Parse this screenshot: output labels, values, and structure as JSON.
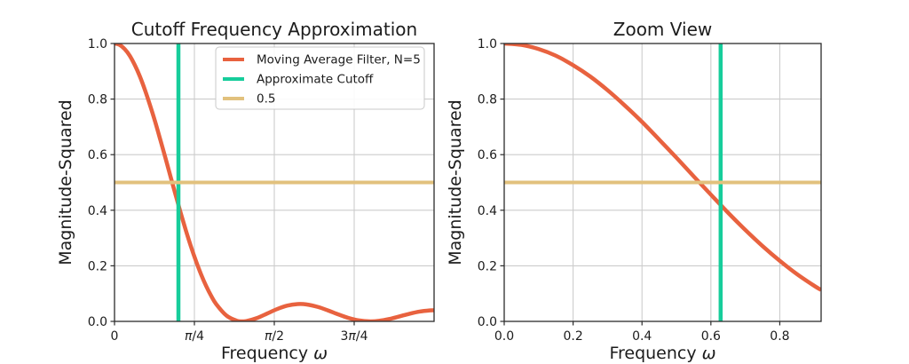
{
  "figure": {
    "background": "#ffffff",
    "text_color": "#1c1c1c",
    "grid_color": "#cccccc",
    "spine_color": "#2b2b2b"
  },
  "chart_data": [
    {
      "type": "line",
      "title": "Cutoff Frequency Approximation",
      "xlabel": "Frequency ω",
      "ylabel": "Magnitude-Squared",
      "xlim": [
        0,
        3.1416
      ],
      "ylim": [
        0,
        1.0
      ],
      "grid": true,
      "legend_position": "upper right",
      "xticks": {
        "values": [
          0,
          0.7854,
          1.5708,
          2.3562
        ],
        "labels": [
          "0",
          "π/4",
          "π/2",
          "3π/4"
        ]
      },
      "yticks": {
        "values": [
          0,
          0.2,
          0.4,
          0.6,
          0.8,
          1.0
        ],
        "labels": [
          "0.0",
          "0.2",
          "0.4",
          "0.6",
          "0.8",
          "1.0"
        ]
      },
      "series": [
        {
          "name": "Moving Average Filter, N=5",
          "color": "#e8623f",
          "x": [
            0,
            0.05,
            0.1,
            0.15,
            0.2,
            0.25,
            0.3,
            0.35,
            0.4,
            0.45,
            0.5,
            0.55,
            0.6,
            0.65,
            0.7,
            0.75,
            0.8,
            0.85,
            0.9,
            0.95,
            1.0,
            1.1,
            1.2,
            1.257,
            1.3,
            1.4,
            1.5,
            1.6,
            1.7,
            1.8,
            1.885,
            2.0,
            2.1,
            2.2,
            2.3,
            2.4,
            2.513,
            2.6,
            2.7,
            2.8,
            2.9,
            3.0,
            3.1,
            3.1416
          ],
          "y": [
            1,
            0.995,
            0.98,
            0.956,
            0.922,
            0.881,
            0.832,
            0.777,
            0.718,
            0.654,
            0.589,
            0.522,
            0.456,
            0.391,
            0.329,
            0.271,
            0.218,
            0.17,
            0.128,
            0.092,
            0.062,
            0.021,
            0.0025,
            0,
            0.0013,
            0.0119,
            0.0281,
            0.0445,
            0.0568,
            0.0623,
            0.0611,
            0.0519,
            0.0392,
            0.0251,
            0.0124,
            0.0036,
            0,
            0.002,
            0.0085,
            0.0178,
            0.0275,
            0.0353,
            0.0396,
            0.04
          ]
        }
      ],
      "vline": {
        "label": "Approximate Cutoff",
        "x": 0.6283,
        "color": "#16cd9b"
      },
      "hline": {
        "label": "0.5",
        "y": 0.5,
        "color": "#e2c17d"
      },
      "legend": {
        "entries": [
          "Moving Average Filter, N=5",
          "Approximate Cutoff",
          "0.5"
        ]
      }
    },
    {
      "type": "line",
      "title": "Zoom View",
      "xlabel": "Frequency ω",
      "ylabel": "Magnitude-Squared",
      "xlim": [
        0,
        0.92
      ],
      "ylim": [
        0,
        1.0
      ],
      "grid": true,
      "legend_position": "none",
      "xticks": {
        "values": [
          0,
          0.2,
          0.4,
          0.6,
          0.8
        ],
        "labels": [
          "0.0",
          "0.2",
          "0.4",
          "0.6",
          "0.8"
        ]
      },
      "yticks": {
        "values": [
          0,
          0.2,
          0.4,
          0.6,
          0.8,
          1.0
        ],
        "labels": [
          "0.0",
          "0.2",
          "0.4",
          "0.6",
          "0.8",
          "1.0"
        ]
      },
      "series": [
        {
          "name": "Moving Average Filter, N=5",
          "color": "#e8623f",
          "x": [
            0,
            0.05,
            0.1,
            0.15,
            0.2,
            0.25,
            0.3,
            0.35,
            0.4,
            0.45,
            0.5,
            0.55,
            0.6,
            0.65,
            0.7,
            0.75,
            0.8,
            0.85,
            0.9,
            0.92
          ],
          "y": [
            1,
            0.995,
            0.98,
            0.956,
            0.922,
            0.881,
            0.832,
            0.777,
            0.718,
            0.654,
            0.589,
            0.522,
            0.456,
            0.391,
            0.329,
            0.271,
            0.218,
            0.17,
            0.128,
            0.113
          ]
        }
      ],
      "vline": {
        "label": "Approximate Cutoff",
        "x": 0.6283,
        "color": "#16cd9b"
      },
      "hline": {
        "label": "0.5",
        "y": 0.5,
        "color": "#e2c17d"
      },
      "legend": null
    }
  ]
}
